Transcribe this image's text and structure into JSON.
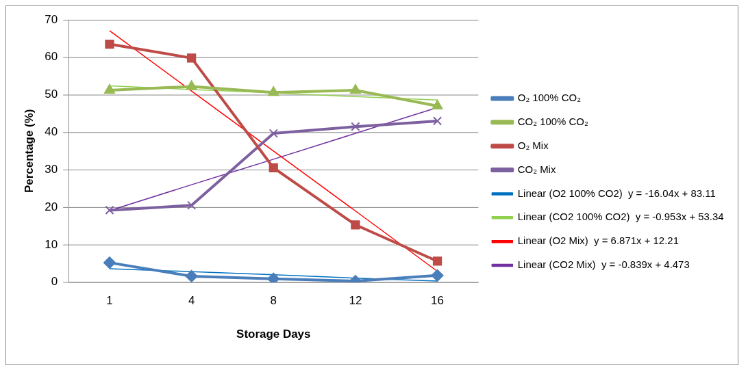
{
  "chart_data": {
    "type": "line",
    "xlabel": "Storage Days",
    "ylabel": "Percentage (%)",
    "categories": [
      "1",
      "4",
      "8",
      "12",
      "16"
    ],
    "ylim": [
      0,
      70
    ],
    "yticks": [
      0,
      10,
      20,
      30,
      40,
      50,
      60,
      70
    ],
    "grid": "y",
    "legend": "right",
    "series": [
      {
        "name": "O₂ 100% CO₂",
        "color": "#4a7ebb",
        "marker": "diamond",
        "values": [
          5.2,
          1.6,
          0.9,
          0.3,
          1.8
        ]
      },
      {
        "name": "CO₂ 100% CO₂",
        "color": "#98b954",
        "marker": "triangle",
        "values": [
          51.2,
          52.2,
          50.6,
          51.2,
          47.0
        ]
      },
      {
        "name": "O₂ Mix",
        "color": "#be4b48",
        "marker": "square",
        "values": [
          63.5,
          59.8,
          30.5,
          15.3,
          5.6
        ]
      },
      {
        "name": "CO₂ Mix",
        "color": "#7d60a0",
        "marker": "cross",
        "values": [
          19.2,
          20.5,
          39.7,
          41.5,
          43.0
        ]
      },
      {
        "name": "Linear (O2 100% CO2)  y = -16.04x + 83.11",
        "color": "#0070c0",
        "marker": "none",
        "values": [
          3.6,
          2.8,
          2.0,
          1.1,
          0.3
        ]
      },
      {
        "name": "Linear (CO2 100% CO2)  y = -0.953x + 53.34",
        "color": "#92d050",
        "marker": "none",
        "values": [
          52.4,
          51.4,
          50.5,
          49.5,
          48.6
        ]
      },
      {
        "name": "Linear (O2 Mix)  y = 6.871x + 12.21",
        "color": "#ff0000",
        "marker": "none",
        "values": [
          67.1,
          51.0,
          35.0,
          19.0,
          2.9
        ]
      },
      {
        "name": "Linear (CO2 Mix)  y = -0.839x + 4.473",
        "color": "#7030a0",
        "marker": "none",
        "values": [
          19.1,
          26.0,
          32.8,
          39.7,
          46.6
        ]
      }
    ]
  }
}
